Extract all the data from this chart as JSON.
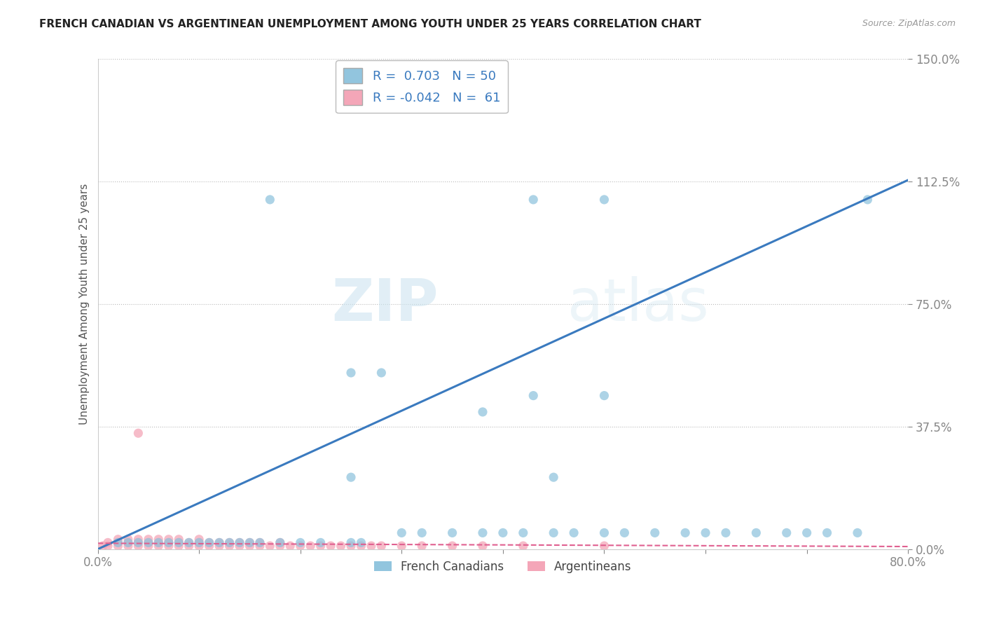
{
  "title": "FRENCH CANADIAN VS ARGENTINEAN UNEMPLOYMENT AMONG YOUTH UNDER 25 YEARS CORRELATION CHART",
  "source": "Source: ZipAtlas.com",
  "ylabel": "Unemployment Among Youth under 25 years",
  "r_blue": 0.703,
  "n_blue": 50,
  "r_pink": -0.042,
  "n_pink": 61,
  "xlim": [
    0.0,
    0.8
  ],
  "ylim": [
    0.0,
    1.5
  ],
  "yticks": [
    0.0,
    0.375,
    0.75,
    1.125,
    1.5
  ],
  "ytick_labels": [
    "0.0%",
    "37.5%",
    "75.0%",
    "112.5%",
    "150.0%"
  ],
  "xtick_labels": [
    "0.0%",
    "",
    "",
    "",
    "",
    "",
    "",
    "",
    "80.0%"
  ],
  "blue_color": "#92c5de",
  "pink_color": "#f4a6b8",
  "blue_line_color": "#3a7abf",
  "pink_line_color": "#e06090",
  "watermark_zip": "ZIP",
  "watermark_atlas": "atlas",
  "legend_labels": [
    "French Canadians",
    "Argentineans"
  ],
  "blue_scatter_x": [
    0.02,
    0.03,
    0.04,
    0.05,
    0.06,
    0.07,
    0.08,
    0.09,
    0.1,
    0.11,
    0.12,
    0.13,
    0.14,
    0.15,
    0.16,
    0.18,
    0.2,
    0.22,
    0.25,
    0.26,
    0.3,
    0.32,
    0.35,
    0.38,
    0.4,
    0.42,
    0.45,
    0.47,
    0.5,
    0.52,
    0.55,
    0.58,
    0.6,
    0.62,
    0.65,
    0.68,
    0.7,
    0.72,
    0.75,
    0.17,
    0.43,
    0.5,
    0.76,
    0.25,
    0.28,
    0.43,
    0.5,
    0.38,
    0.25,
    0.45
  ],
  "blue_scatter_y": [
    0.02,
    0.02,
    0.02,
    0.02,
    0.02,
    0.02,
    0.02,
    0.02,
    0.02,
    0.02,
    0.02,
    0.02,
    0.02,
    0.02,
    0.02,
    0.02,
    0.02,
    0.02,
    0.02,
    0.02,
    0.05,
    0.05,
    0.05,
    0.05,
    0.05,
    0.05,
    0.05,
    0.05,
    0.05,
    0.05,
    0.05,
    0.05,
    0.05,
    0.05,
    0.05,
    0.05,
    0.05,
    0.05,
    0.05,
    1.07,
    1.07,
    1.07,
    1.07,
    0.54,
    0.54,
    0.47,
    0.47,
    0.42,
    0.22,
    0.22
  ],
  "pink_scatter_x": [
    0.005,
    0.01,
    0.01,
    0.02,
    0.02,
    0.02,
    0.03,
    0.03,
    0.03,
    0.04,
    0.04,
    0.04,
    0.05,
    0.05,
    0.05,
    0.06,
    0.06,
    0.06,
    0.07,
    0.07,
    0.07,
    0.08,
    0.08,
    0.08,
    0.09,
    0.09,
    0.1,
    0.1,
    0.1,
    0.11,
    0.11,
    0.12,
    0.12,
    0.13,
    0.13,
    0.14,
    0.14,
    0.15,
    0.15,
    0.16,
    0.16,
    0.17,
    0.18,
    0.18,
    0.19,
    0.2,
    0.21,
    0.22,
    0.23,
    0.24,
    0.25,
    0.26,
    0.27,
    0.28,
    0.3,
    0.32,
    0.35,
    0.38,
    0.42,
    0.5,
    0.04
  ],
  "pink_scatter_y": [
    0.01,
    0.01,
    0.02,
    0.01,
    0.02,
    0.03,
    0.01,
    0.02,
    0.03,
    0.01,
    0.02,
    0.03,
    0.01,
    0.02,
    0.03,
    0.01,
    0.02,
    0.03,
    0.01,
    0.02,
    0.03,
    0.01,
    0.02,
    0.03,
    0.01,
    0.02,
    0.01,
    0.02,
    0.03,
    0.01,
    0.02,
    0.01,
    0.02,
    0.01,
    0.02,
    0.01,
    0.02,
    0.01,
    0.02,
    0.01,
    0.02,
    0.01,
    0.01,
    0.02,
    0.01,
    0.01,
    0.01,
    0.01,
    0.01,
    0.01,
    0.01,
    0.01,
    0.01,
    0.01,
    0.01,
    0.01,
    0.01,
    0.01,
    0.01,
    0.01,
    0.355
  ],
  "blue_trendline_x": [
    0.0,
    0.8
  ],
  "blue_trendline_y": [
    0.0,
    1.13
  ],
  "pink_trendline_x": [
    0.0,
    0.8
  ],
  "pink_trendline_y": [
    0.018,
    0.008
  ]
}
